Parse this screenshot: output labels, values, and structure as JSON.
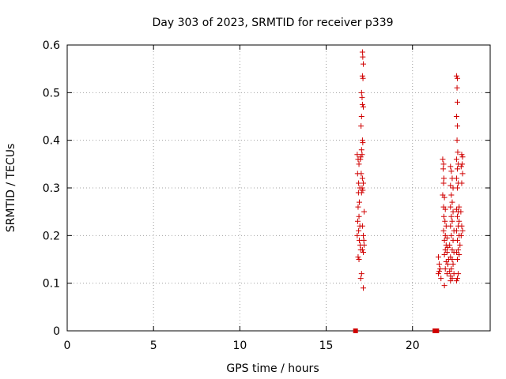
{
  "chart_data": {
    "type": "scatter",
    "title": "Day 303 of 2023, SRMTID for receiver p339",
    "xlabel": "GPS time / hours",
    "ylabel": "SRMTID / TECUs",
    "xlim": [
      0,
      24.5
    ],
    "ylim": [
      0,
      0.6
    ],
    "xticks": [
      "0",
      "5",
      "10",
      "15",
      "20"
    ],
    "xtick_values": [
      0,
      5,
      10,
      15,
      20
    ],
    "yticks": [
      "0",
      "0.1",
      "0.2",
      "0.3",
      "0.4",
      "0.5",
      "0.6"
    ],
    "ytick_values": [
      0,
      0.1,
      0.2,
      0.3,
      0.4,
      0.5,
      0.6
    ],
    "grid": true,
    "marker_color": "#d00000",
    "series": [
      {
        "marker": "plus",
        "points": [
          [
            16.8,
            0.37
          ],
          [
            16.85,
            0.36
          ],
          [
            16.9,
            0.35
          ],
          [
            16.82,
            0.33
          ],
          [
            16.88,
            0.31
          ],
          [
            16.95,
            0.3
          ],
          [
            16.87,
            0.29
          ],
          [
            16.92,
            0.27
          ],
          [
            16.85,
            0.26
          ],
          [
            16.9,
            0.24
          ],
          [
            16.83,
            0.23
          ],
          [
            16.95,
            0.22
          ],
          [
            16.88,
            0.21
          ],
          [
            16.8,
            0.2
          ],
          [
            16.92,
            0.19
          ],
          [
            16.97,
            0.18
          ],
          [
            17.0,
            0.17
          ],
          [
            16.85,
            0.155
          ],
          [
            16.9,
            0.15
          ],
          [
            17.05,
            0.12
          ],
          [
            17.0,
            0.11
          ],
          [
            17.15,
            0.09
          ],
          [
            17.1,
            0.585
          ],
          [
            17.12,
            0.575
          ],
          [
            17.15,
            0.56
          ],
          [
            17.1,
            0.535
          ],
          [
            17.13,
            0.53
          ],
          [
            17.05,
            0.5
          ],
          [
            17.08,
            0.49
          ],
          [
            17.1,
            0.475
          ],
          [
            17.15,
            0.47
          ],
          [
            17.05,
            0.45
          ],
          [
            17.02,
            0.43
          ],
          [
            17.1,
            0.4
          ],
          [
            17.12,
            0.395
          ],
          [
            17.05,
            0.38
          ],
          [
            17.08,
            0.37
          ],
          [
            17.0,
            0.365
          ],
          [
            16.98,
            0.36
          ],
          [
            17.03,
            0.33
          ],
          [
            17.1,
            0.32
          ],
          [
            17.15,
            0.31
          ],
          [
            17.08,
            0.3
          ],
          [
            17.12,
            0.295
          ],
          [
            17.05,
            0.29
          ],
          [
            17.2,
            0.25
          ],
          [
            17.1,
            0.22
          ],
          [
            17.15,
            0.2
          ],
          [
            17.18,
            0.19
          ],
          [
            17.2,
            0.18
          ],
          [
            17.1,
            0.17
          ],
          [
            17.15,
            0.165
          ],
          [
            21.5,
            0.155
          ],
          [
            21.55,
            0.14
          ],
          [
            21.6,
            0.13
          ],
          [
            21.5,
            0.12
          ],
          [
            21.65,
            0.11
          ],
          [
            21.55,
            0.125
          ],
          [
            21.75,
            0.36
          ],
          [
            21.8,
            0.35
          ],
          [
            21.78,
            0.34
          ],
          [
            21.82,
            0.32
          ],
          [
            21.8,
            0.31
          ],
          [
            21.75,
            0.285
          ],
          [
            21.85,
            0.28
          ],
          [
            21.8,
            0.26
          ],
          [
            21.9,
            0.255
          ],
          [
            21.82,
            0.24
          ],
          [
            21.88,
            0.23
          ],
          [
            21.95,
            0.22
          ],
          [
            21.8,
            0.21
          ],
          [
            21.9,
            0.2
          ],
          [
            22.0,
            0.195
          ],
          [
            21.85,
            0.19
          ],
          [
            21.95,
            0.18
          ],
          [
            22.05,
            0.175
          ],
          [
            21.9,
            0.17
          ],
          [
            22.0,
            0.165
          ],
          [
            21.85,
            0.16
          ],
          [
            22.1,
            0.15
          ],
          [
            21.95,
            0.145
          ],
          [
            22.05,
            0.14
          ],
          [
            21.9,
            0.13
          ],
          [
            22.15,
            0.125
          ],
          [
            22.0,
            0.12
          ],
          [
            21.85,
            0.095
          ],
          [
            22.2,
            0.115
          ],
          [
            22.2,
            0.345
          ],
          [
            22.25,
            0.335
          ],
          [
            22.3,
            0.32
          ],
          [
            22.2,
            0.305
          ],
          [
            22.35,
            0.3
          ],
          [
            22.25,
            0.285
          ],
          [
            22.3,
            0.27
          ],
          [
            22.2,
            0.26
          ],
          [
            22.35,
            0.25
          ],
          [
            22.25,
            0.24
          ],
          [
            22.3,
            0.23
          ],
          [
            22.2,
            0.22
          ],
          [
            22.4,
            0.21
          ],
          [
            22.25,
            0.2
          ],
          [
            22.35,
            0.19
          ],
          [
            22.15,
            0.18
          ],
          [
            22.3,
            0.17
          ],
          [
            22.4,
            0.165
          ],
          [
            22.2,
            0.155
          ],
          [
            22.3,
            0.15
          ],
          [
            22.35,
            0.14
          ],
          [
            22.25,
            0.13
          ],
          [
            22.4,
            0.12
          ],
          [
            22.3,
            0.11
          ],
          [
            22.2,
            0.105
          ],
          [
            22.55,
            0.535
          ],
          [
            22.6,
            0.53
          ],
          [
            22.58,
            0.51
          ],
          [
            22.6,
            0.48
          ],
          [
            22.55,
            0.45
          ],
          [
            22.6,
            0.43
          ],
          [
            22.58,
            0.4
          ],
          [
            22.62,
            0.375
          ],
          [
            22.55,
            0.36
          ],
          [
            22.65,
            0.35
          ],
          [
            22.6,
            0.34
          ],
          [
            22.55,
            0.32
          ],
          [
            22.65,
            0.31
          ],
          [
            22.6,
            0.3
          ],
          [
            22.7,
            0.26
          ],
          [
            22.55,
            0.255
          ],
          [
            22.65,
            0.25
          ],
          [
            22.6,
            0.24
          ],
          [
            22.7,
            0.23
          ],
          [
            22.65,
            0.22
          ],
          [
            22.55,
            0.21
          ],
          [
            22.7,
            0.2
          ],
          [
            22.6,
            0.19
          ],
          [
            22.75,
            0.18
          ],
          [
            22.65,
            0.17
          ],
          [
            22.55,
            0.165
          ],
          [
            22.7,
            0.16
          ],
          [
            22.6,
            0.15
          ],
          [
            22.65,
            0.12
          ],
          [
            22.6,
            0.11
          ],
          [
            22.55,
            0.105
          ],
          [
            22.85,
            0.37
          ],
          [
            22.9,
            0.365
          ],
          [
            22.88,
            0.35
          ],
          [
            22.82,
            0.345
          ],
          [
            22.9,
            0.33
          ],
          [
            22.85,
            0.31
          ],
          [
            22.8,
            0.25
          ],
          [
            22.85,
            0.22
          ],
          [
            22.9,
            0.21
          ],
          [
            22.82,
            0.2
          ]
        ]
      },
      {
        "marker": "square",
        "points": [
          [
            16.7,
            0.0
          ],
          [
            21.3,
            0.0
          ],
          [
            21.4,
            0.0
          ]
        ]
      }
    ]
  }
}
